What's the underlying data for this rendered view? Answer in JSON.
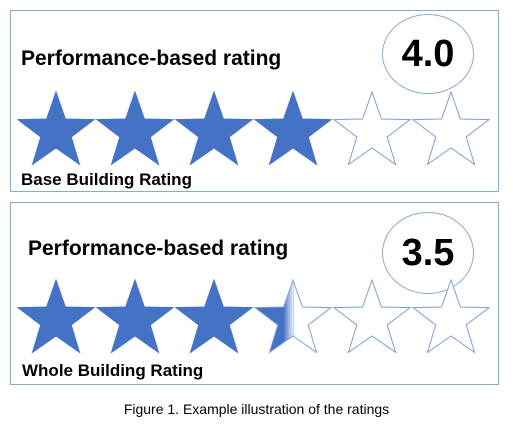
{
  "colors": {
    "star_fill": "#4472c4",
    "star_outline": "#7f9fd0",
    "border": "#8eaacb"
  },
  "panels": [
    {
      "title": "Performance-based rating",
      "score": "4.0",
      "caption": "Base Building Rating",
      "max_stars": 6,
      "filled": 4
    },
    {
      "title": "Performance-based rating",
      "score": "3.5",
      "caption": "Whole Building Rating",
      "max_stars": 6,
      "filled": 3.5
    }
  ],
  "figure_caption": "Figure 1. Example illustration of the ratings"
}
